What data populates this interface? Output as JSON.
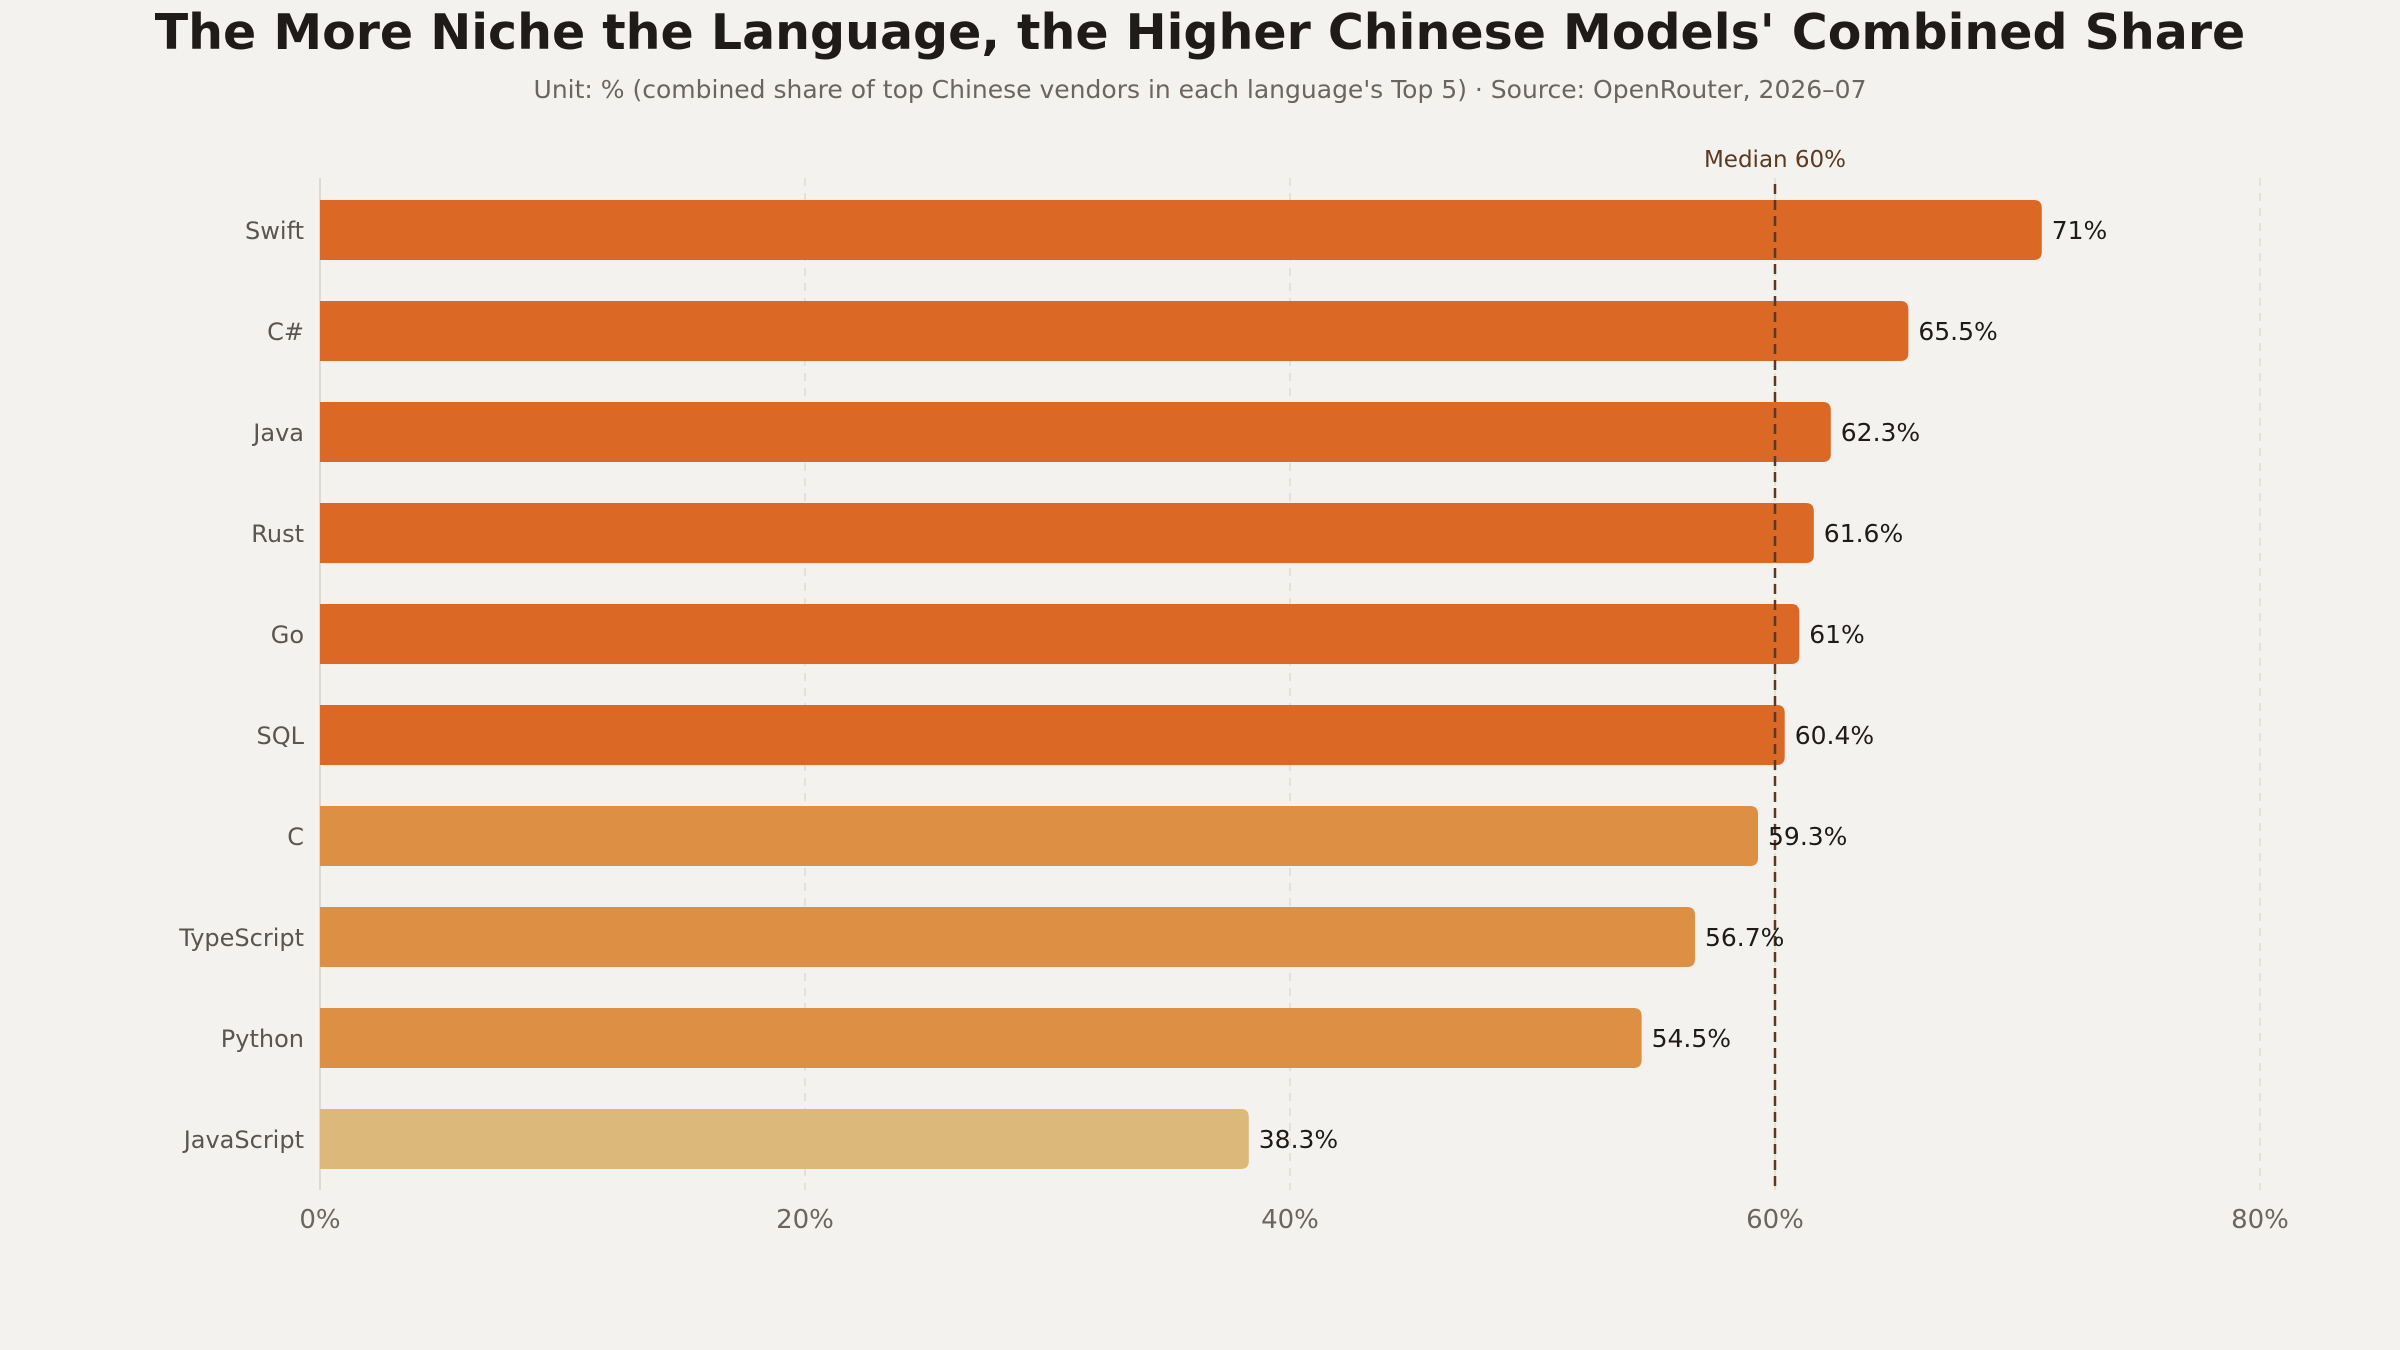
{
  "chart_data": {
    "type": "bar",
    "orientation": "horizontal",
    "title": "The More Niche the Language, the Higher Chinese Models' Combined Share",
    "subtitle": "Unit: % (combined share of top Chinese vendors in each language's Top 5) · Source: OpenRouter, 2026–07",
    "categories": [
      "Swift",
      "C#",
      "Java",
      "Rust",
      "Go",
      "SQL",
      "C",
      "TypeScript",
      "Python",
      "JavaScript"
    ],
    "values": [
      71,
      65.5,
      62.3,
      61.6,
      61,
      60.4,
      59.3,
      56.7,
      54.5,
      38.3
    ],
    "value_labels": [
      "71%",
      "65.5%",
      "62.3%",
      "61.6%",
      "61%",
      "60.4%",
      "59.3%",
      "56.7%",
      "54.5%",
      "38.3%"
    ],
    "xlim": [
      0,
      80
    ],
    "xticks": [
      0,
      20,
      40,
      60,
      80
    ],
    "xtick_labels": [
      "0%",
      "20%",
      "40%",
      "60%",
      "80%"
    ],
    "grid": "vertical dashed",
    "median": {
      "value": 60,
      "label": "Median 60%"
    },
    "colors": {
      "above_median": "#db6825",
      "below_median": "#dd9044",
      "lowest": "#dcb87a",
      "median_line": "#5a3a22",
      "background": "#f4f2ee"
    }
  }
}
